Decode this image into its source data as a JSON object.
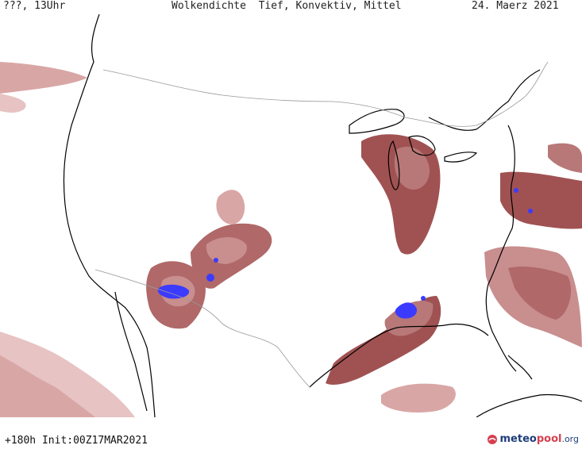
{
  "header": {
    "left": "???, 13Uhr",
    "title": "Wolkendichte  Tief, Konvektiv, Mittel",
    "date": "24. Maerz 2021"
  },
  "footer": {
    "run_info": "+180h Init:00Z17MAR2021",
    "brand_a": "meteo",
    "brand_b": "pool",
    "brand_c": ".org",
    "logo_icon": "meteopool-logo-icon"
  },
  "colors": {
    "background": "#ffffff",
    "cloud_light": "#e7c3c3",
    "cloud_medium": "#c98e8e",
    "cloud_dark": "#a05252",
    "convective": "#3b3bff",
    "coastline": "#000000",
    "border": "#999999"
  }
}
